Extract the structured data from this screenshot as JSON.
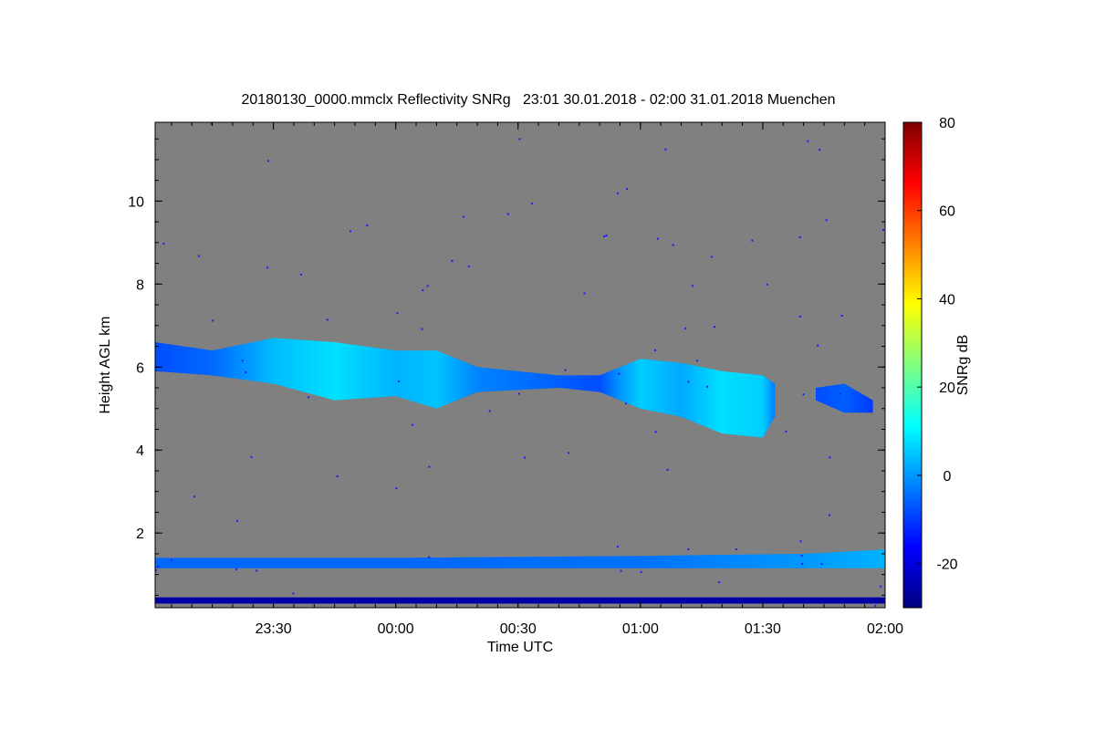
{
  "chart_data": {
    "type": "heatmap",
    "title": "20180130_0000.mmclx Reflectivity SNRg   23:01 30.01.2018 - 02:00 31.01.2018 Muenchen",
    "xlabel": "Time UTC",
    "ylabel": "Height AGL km",
    "colorbar_label": "SNRg dB",
    "x_tick_labels": [
      "23:30",
      "00:00",
      "00:30",
      "01:00",
      "01:30",
      "02:00"
    ],
    "y_tick_labels": [
      "2",
      "4",
      "6",
      "8",
      "10"
    ],
    "colorbar_tick_labels": [
      "-20",
      "0",
      "20",
      "40",
      "60",
      "80"
    ],
    "xlim": [
      "23:01",
      "02:00"
    ],
    "ylim": [
      0.2,
      11.9
    ],
    "clim": [
      -30,
      80
    ],
    "background_color": "#808080",
    "colormap": "jet",
    "features": [
      {
        "name": "upper cloud layer",
        "time": [
          "23:01",
          "23:15",
          "23:30",
          "23:45",
          "00:00",
          "00:10",
          "00:20",
          "00:40",
          "00:50",
          "00:55",
          "01:00",
          "01:10",
          "01:20",
          "01:30",
          "01:33"
        ],
        "top_km": [
          6.6,
          6.4,
          6.7,
          6.6,
          6.4,
          6.4,
          6.0,
          5.8,
          5.8,
          6.0,
          6.2,
          6.1,
          5.9,
          5.8,
          5.6
        ],
        "base_km": [
          5.9,
          5.8,
          5.6,
          5.2,
          5.3,
          5.0,
          5.4,
          5.5,
          5.4,
          5.2,
          5.0,
          4.8,
          4.4,
          4.3,
          4.8
        ],
        "snr_db": [
          -8,
          -5,
          4,
          8,
          3,
          5,
          -2,
          -6,
          -8,
          0,
          6,
          2,
          8,
          6,
          -3
        ]
      },
      {
        "name": "isolated cloud",
        "time": [
          "01:43",
          "01:50",
          "01:57"
        ],
        "top_km": [
          5.5,
          5.6,
          5.2
        ],
        "base_km": [
          5.2,
          4.9,
          4.9
        ],
        "snr_db": [
          -8,
          -6,
          -10
        ]
      },
      {
        "name": "low echo layer",
        "time": [
          "23:01",
          "00:00",
          "01:00",
          "01:40",
          "02:00"
        ],
        "top_km": [
          1.4,
          1.4,
          1.45,
          1.5,
          1.6
        ],
        "base_km": [
          1.15,
          1.15,
          1.15,
          1.15,
          1.15
        ],
        "snr_db": [
          -5,
          -5,
          -4,
          0,
          3
        ]
      },
      {
        "name": "near-ground noise",
        "time": [
          "23:01",
          "02:00"
        ],
        "top_km": [
          0.45,
          0.45
        ],
        "base_km": [
          0.3,
          0.3
        ],
        "snr_db": [
          -26,
          -26
        ]
      }
    ]
  }
}
